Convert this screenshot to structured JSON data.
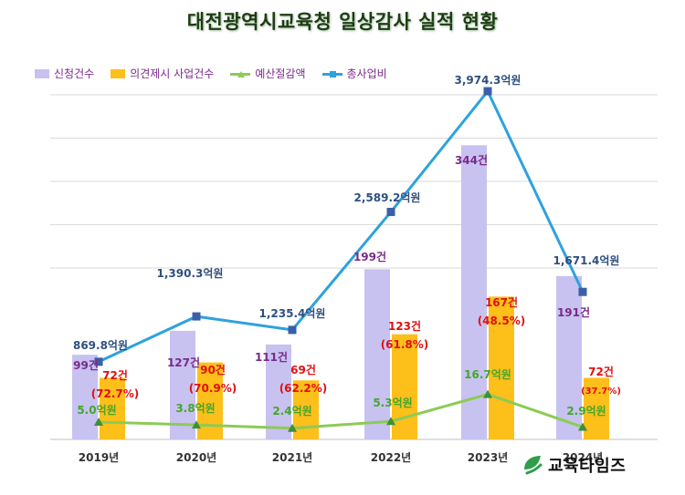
{
  "title": "대전광역시교육청 일상감사 실적 현황",
  "logo_text": "교육타임즈",
  "colors": {
    "apply_bar": "#c7c2f0",
    "adopt_bar": "#fdbf1a",
    "savings_line": "#8ccb55",
    "cost_line": "#2ea2dc",
    "cost_marker": "#3a5fa8",
    "count_label": "#7a2a8a",
    "rate_label": "#e01010",
    "cost_label": "#2f4f7f",
    "savings_label": "#45a62b",
    "grid": "#d9d9d9",
    "logo_green": "#2f9e4a"
  },
  "legend": [
    {
      "label": "신청건수",
      "kind": "bar",
      "color": "#c7c2f0"
    },
    {
      "label": "의견제시 사업건수",
      "kind": "bar",
      "color": "#fdbf1a"
    },
    {
      "label": "예산절감액",
      "kind": "line-triangle",
      "color": "#8ccb55"
    },
    {
      "label": "총사업비",
      "kind": "line-square",
      "color": "#2ea2dc"
    }
  ],
  "chart_data": {
    "type": "bar",
    "title": "대전광역시교육청 일상감사 실적 현황",
    "categories": [
      "2019년",
      "2020년",
      "2021년",
      "2022년",
      "2023년",
      "2024년"
    ],
    "series": [
      {
        "name": "신청건수",
        "type": "bar",
        "values": [
          99,
          127,
          111,
          199,
          344,
          191
        ],
        "labels": [
          "99건",
          "127건",
          "111건",
          "199건",
          "344건",
          "191건"
        ]
      },
      {
        "name": "의견제시 사업건수",
        "type": "bar",
        "values": [
          72,
          90,
          69,
          123,
          167,
          72
        ],
        "labels": [
          "72건",
          "90건",
          "69건",
          "123건",
          "167건",
          "72건"
        ],
        "rate_labels": [
          "(72.7%)",
          "(70.9%)",
          "(62.2%)",
          "(61.8%)",
          "(48.5%)",
          "(37.7%)"
        ]
      },
      {
        "name": "예산절감액",
        "type": "line",
        "marker": "triangle",
        "values": [
          5.0,
          3.8,
          2.4,
          5.3,
          16.7,
          2.9
        ],
        "labels": [
          "5.0억원",
          "3.8억원",
          "2.4억원",
          "5.3억원",
          "16.7억원",
          "2.9억원"
        ]
      },
      {
        "name": "총사업비",
        "type": "line",
        "marker": "square",
        "values": [
          869.8,
          1390.3,
          1235.4,
          2589.2,
          3974.3,
          1671.4
        ],
        "labels": [
          "869.8억원",
          "1,390.3억원",
          "1,235.4억원",
          "2,589.2억원",
          "3,974.3억원",
          "1,671.4억원"
        ]
      }
    ],
    "grid": true,
    "legend_position": "top-left"
  }
}
